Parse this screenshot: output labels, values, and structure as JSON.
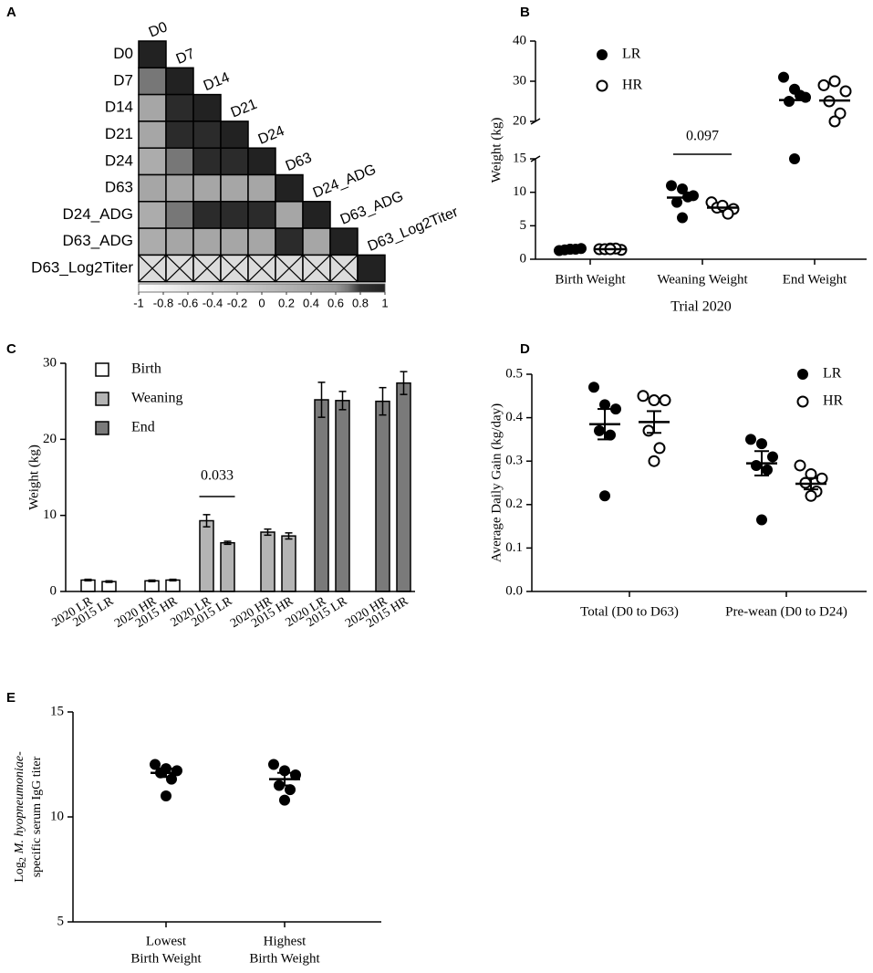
{
  "chart_data": [
    {
      "panel": "A",
      "type": "heatmap",
      "labels": [
        "D0",
        "D7",
        "D14",
        "D21",
        "D24",
        "D63",
        "D24_ADG",
        "D63_ADG",
        "D63_Log2Titer"
      ],
      "matrix": [
        [
          1
        ],
        [
          0.7,
          1
        ],
        [
          0.4,
          0.9,
          1
        ],
        [
          0.4,
          0.9,
          0.9,
          1
        ],
        [
          0.3,
          0.7,
          0.9,
          0.9,
          1
        ],
        [
          0.4,
          0.4,
          0.4,
          0.4,
          0.4,
          1
        ],
        [
          0.3,
          0.7,
          0.9,
          0.9,
          0.9,
          0.4,
          1
        ],
        [
          0.3,
          0.4,
          0.4,
          0.4,
          0.4,
          0.9,
          0.4,
          1
        ],
        [
          null,
          null,
          null,
          null,
          null,
          null,
          null,
          null,
          1
        ]
      ],
      "zlim": [
        -1,
        1
      ],
      "colorscale": [
        {
          "value": -1,
          "color": "#ffffff"
        },
        {
          "value": 0.6,
          "color": "#999999"
        },
        {
          "value": 0.7,
          "color": "#777777"
        },
        {
          "value": 0.8,
          "color": "#333333"
        },
        {
          "value": 1,
          "color": "#222222"
        }
      ],
      "colorbar_ticks": [
        -1,
        -0.8,
        -0.6,
        -0.4,
        -0.2,
        0,
        0.2,
        0.4,
        0.6,
        0.8,
        1
      ]
    },
    {
      "panel": "B",
      "type": "dot",
      "categories": [
        "Birth Weight",
        "Weaning Weight",
        "End Weight"
      ],
      "series": [
        {
          "name": "LR",
          "marker": "filled",
          "values": [
            [
              1.3,
              1.5,
              1.6,
              1.4,
              1.5,
              1.5
            ],
            [
              11,
              10.5,
              9.5,
              8.5,
              9.3,
              6.2
            ],
            [
              31,
              28,
              26,
              25,
              26.5,
              15
            ]
          ],
          "means": [
            1.5,
            9.2,
            25.3
          ]
        },
        {
          "name": "HR",
          "marker": "open",
          "values": [
            [
              1.5,
              1.6,
              1.4,
              1.5,
              1.6,
              1.5
            ],
            [
              8.5,
              7.8,
              7.5,
              7.7,
              6.8,
              8.0
            ],
            [
              29,
              30,
              27.5,
              25,
              22,
              20
            ]
          ],
          "means": [
            1.5,
            7.7,
            25.2
          ]
        }
      ],
      "ylim": [
        0,
        40
      ],
      "axis_break": [
        15,
        20
      ],
      "yticks": [
        0,
        5,
        10,
        15,
        20,
        30,
        40
      ],
      "xlabel": "Trial 2020",
      "ylabel": "Weight (kg)",
      "annotations": [
        "0.097"
      ]
    },
    {
      "panel": "C",
      "type": "bar",
      "categories": [
        "2020 LR",
        "2015 LR",
        "2020 HR",
        "2015 HR",
        "2020 LR",
        "2015 LR",
        "2020 HR",
        "2015 HR",
        "2020 LR",
        "2015 LR",
        "2020 HR",
        "2015 HR"
      ],
      "series": [
        {
          "name": "Birth",
          "color": "#ffffff",
          "values": [
            1.5,
            1.3,
            1.4,
            1.5,
            null,
            null,
            null,
            null,
            null,
            null,
            null,
            null
          ],
          "errors": [
            0.1,
            0.1,
            0.1,
            0.1,
            null,
            null,
            null,
            null,
            null,
            null,
            null,
            null
          ]
        },
        {
          "name": "Weaning",
          "color": "#b4b4b4",
          "values": [
            null,
            null,
            null,
            null,
            9.3,
            6.4,
            7.8,
            7.3,
            null,
            null,
            null,
            null
          ],
          "errors": [
            null,
            null,
            null,
            null,
            0.8,
            0.2,
            0.4,
            0.4,
            null,
            null,
            null,
            null
          ]
        },
        {
          "name": "End",
          "color": "#7a7a7a",
          "values": [
            null,
            null,
            null,
            null,
            null,
            null,
            null,
            null,
            25.2,
            25.1,
            25.0,
            27.4
          ],
          "errors": [
            null,
            null,
            null,
            null,
            null,
            null,
            null,
            null,
            2.3,
            1.2,
            1.8,
            1.5
          ]
        }
      ],
      "ylim": [
        0,
        30
      ],
      "yticks": [
        0,
        10,
        20,
        30
      ],
      "ylabel": "Weight (kg)",
      "annotations": [
        "0.033"
      ]
    },
    {
      "panel": "D",
      "type": "dot",
      "categories": [
        "Total (D0 to D63)",
        "Pre-wean (D0 to D24)"
      ],
      "series": [
        {
          "name": "LR",
          "marker": "filled",
          "values": [
            [
              0.47,
              0.43,
              0.42,
              0.37,
              0.36,
              0.22
            ],
            [
              0.35,
              0.34,
              0.31,
              0.29,
              0.28,
              0.165
            ]
          ],
          "means": [
            0.385,
            0.295
          ],
          "sems": [
            0.035,
            0.028
          ]
        },
        {
          "name": "HR",
          "marker": "open",
          "values": [
            [
              0.45,
              0.44,
              0.44,
              0.37,
              0.33,
              0.3
            ],
            [
              0.29,
              0.27,
              0.26,
              0.25,
              0.23,
              0.22
            ]
          ],
          "means": [
            0.39,
            0.248
          ],
          "sems": [
            0.025,
            0.013
          ]
        }
      ],
      "ylim": [
        0,
        0.5
      ],
      "yticks": [
        {
          "value": 0,
          "label": "0.0"
        },
        0.1,
        0.2,
        0.3,
        0.4,
        0.5
      ],
      "ylabel": "Average Daily Gain (kg/day)"
    },
    {
      "panel": "E",
      "type": "dot",
      "categories": [
        [
          "Lowest",
          "Birth Weight"
        ],
        [
          "Highest",
          "Birth Weight"
        ]
      ],
      "series": [
        {
          "marker": "filled",
          "values": [
            [
              12.5,
              12.3,
              12.2,
              12.1,
              11.8,
              11.0
            ],
            [
              12.5,
              12.2,
              12.0,
              11.5,
              11.3,
              10.8
            ]
          ],
          "means": [
            12.1,
            11.8
          ],
          "sems": [
            0.2,
            0.3
          ]
        }
      ],
      "ylim": [
        5,
        15
      ],
      "yticks": [
        5,
        10,
        15
      ],
      "ylabel_parts": [
        "Log",
        "2",
        "M. hyopneumoniae",
        "-",
        "specific serum IgG titer"
      ]
    }
  ]
}
